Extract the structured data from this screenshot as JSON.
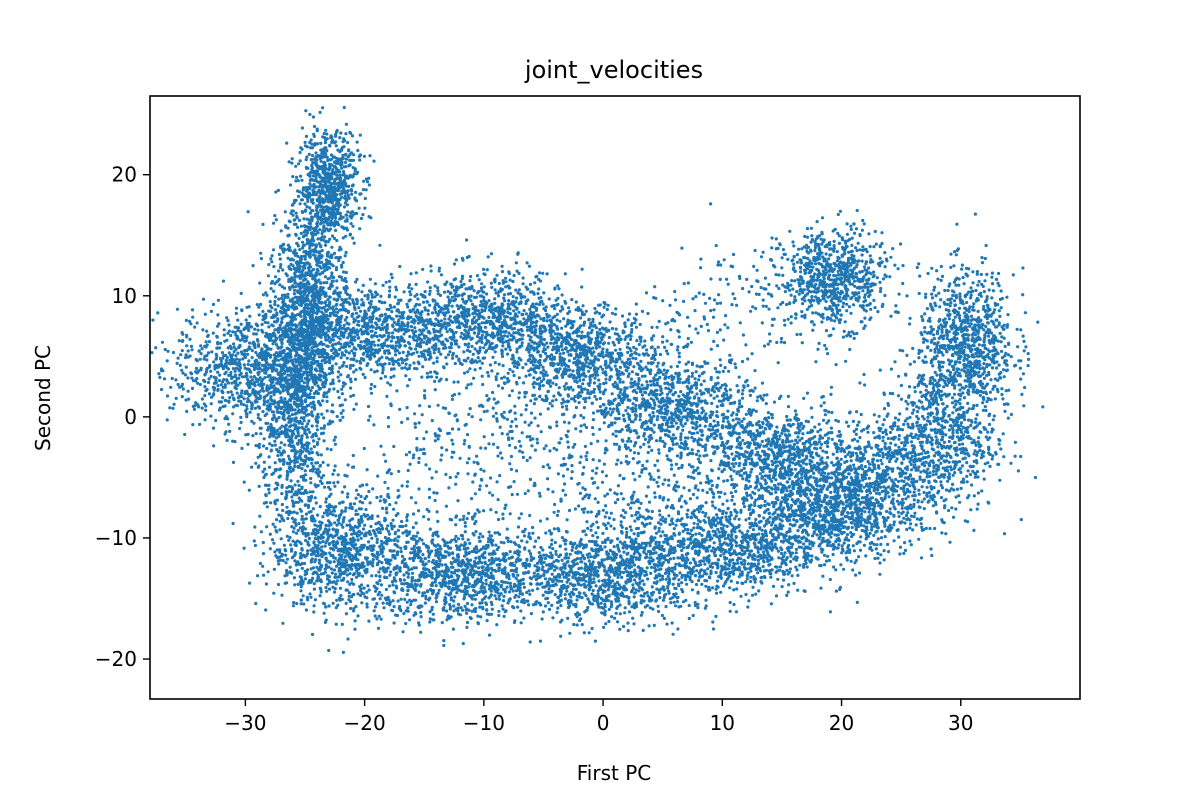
{
  "chart_data": {
    "type": "scatter",
    "title": "joint_velocities",
    "xlabel": "First PC",
    "ylabel": "Second PC",
    "xlim": [
      -38,
      40
    ],
    "ylim": [
      -23.3,
      26.5
    ],
    "xticks": [
      -30,
      -20,
      -10,
      0,
      10,
      20,
      30
    ],
    "yticks": [
      -20,
      -10,
      0,
      10,
      20
    ],
    "xtick_labels": [
      "−30",
      "−20",
      "−10",
      "0",
      "10",
      "20",
      "30"
    ],
    "ytick_labels": [
      "−20",
      "−10",
      "0",
      "10",
      "20"
    ],
    "grid": false,
    "legend": "none",
    "marker_color": "#1f77b4",
    "series": [
      {
        "values_description_free": true,
        "clusters": [
          {
            "x": -23,
            "y": 19,
            "sx": 1.3,
            "sy": 2.2,
            "n": 700
          },
          {
            "x": -24.5,
            "y": 10,
            "sx": 1.4,
            "sy": 4.0,
            "n": 900
          },
          {
            "x": -26,
            "y": 1,
            "sx": 1.6,
            "sy": 5.0,
            "n": 1100
          },
          {
            "x": -30,
            "y": 4,
            "sx": 3.0,
            "sy": 2.5,
            "n": 800
          },
          {
            "x": -20,
            "y": 7,
            "sx": 3.5,
            "sy": 2.0,
            "n": 900
          },
          {
            "x": -10,
            "y": 8,
            "sx": 3.5,
            "sy": 2.0,
            "n": 900
          },
          {
            "x": -2,
            "y": 5,
            "sx": 3.0,
            "sy": 2.0,
            "n": 800
          },
          {
            "x": 6,
            "y": 1,
            "sx": 3.5,
            "sy": 2.0,
            "n": 800
          },
          {
            "x": 14,
            "y": -3,
            "sx": 3.5,
            "sy": 2.0,
            "n": 800
          },
          {
            "x": 22,
            "y": -6,
            "sx": 3.0,
            "sy": 2.5,
            "n": 800
          },
          {
            "x": 28,
            "y": -2,
            "sx": 2.5,
            "sy": 3.0,
            "n": 700
          },
          {
            "x": 30.5,
            "y": 6,
            "sx": 2.0,
            "sy": 3.0,
            "n": 900
          },
          {
            "x": 19.5,
            "y": 11.5,
            "sx": 2.2,
            "sy": 2.0,
            "n": 700
          },
          {
            "x": -22,
            "y": -11,
            "sx": 3.0,
            "sy": 2.5,
            "n": 900
          },
          {
            "x": -12,
            "y": -13,
            "sx": 4.0,
            "sy": 2.0,
            "n": 1000
          },
          {
            "x": 0,
            "y": -13,
            "sx": 4.0,
            "sy": 2.0,
            "n": 1000
          },
          {
            "x": 10,
            "y": -11,
            "sx": 4.0,
            "sy": 2.0,
            "n": 900
          },
          {
            "x": 18,
            "y": -8,
            "sx": 3.0,
            "sy": 2.0,
            "n": 700
          },
          {
            "x": -10,
            "y": -2,
            "sx": 6.0,
            "sy": 5.0,
            "n": 500
          },
          {
            "x": 5,
            "y": -6,
            "sx": 5.0,
            "sy": 3.0,
            "n": 300
          },
          {
            "x": 14,
            "y": 10,
            "sx": 4.0,
            "sy": 2.5,
            "n": 150
          },
          {
            "x": 6,
            "y": 8,
            "sx": 3.0,
            "sy": 2.0,
            "n": 60
          }
        ]
      }
    ]
  }
}
